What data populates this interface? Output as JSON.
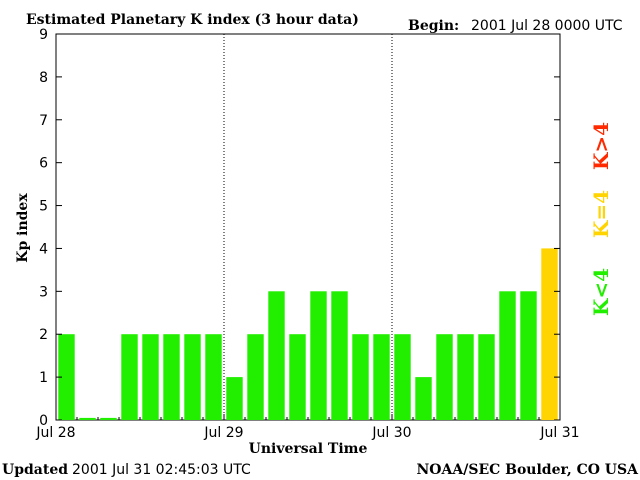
{
  "header": {
    "title": "Estimated Planetary K index (3 hour data)",
    "begin_label": "Begin:",
    "begin_value": "2001 Jul 28 0000 UTC"
  },
  "footer": {
    "updated_label": "Updated",
    "updated_value": "2001 Jul 31 02:45:03 UTC",
    "source": "NOAA/SEC Boulder, CO USA"
  },
  "legend": {
    "gt4": {
      "text": "K>4",
      "color": "#ff2a00"
    },
    "eq4": {
      "text": "K=4",
      "color": "#ffd400"
    },
    "lt4": {
      "text": "K<4",
      "color": "#22ee00"
    }
  },
  "chart_data": {
    "type": "bar",
    "title": "Estimated Planetary K index (3 hour data)",
    "xlabel": "Universal Time",
    "ylabel": "Kp index",
    "ylim": [
      0,
      9
    ],
    "yticks": [
      "0",
      "1",
      "2",
      "3",
      "4",
      "5",
      "6",
      "7",
      "8",
      "9"
    ],
    "xtick_labels": [
      "Jul 28",
      "Jul 29",
      "Jul 30",
      "Jul 31"
    ],
    "day_separators": [
      "Jul 29",
      "Jul 30"
    ],
    "values": [
      2,
      0.05,
      0.05,
      2,
      2,
      2,
      2,
      2,
      1,
      2,
      3,
      2,
      3,
      3,
      2,
      2,
      2,
      1,
      2,
      2,
      2,
      3,
      3,
      4
    ],
    "colors": {
      "lt4": "#22ee00",
      "eq4": "#ffd400",
      "gt4": "#ff2a00"
    }
  }
}
